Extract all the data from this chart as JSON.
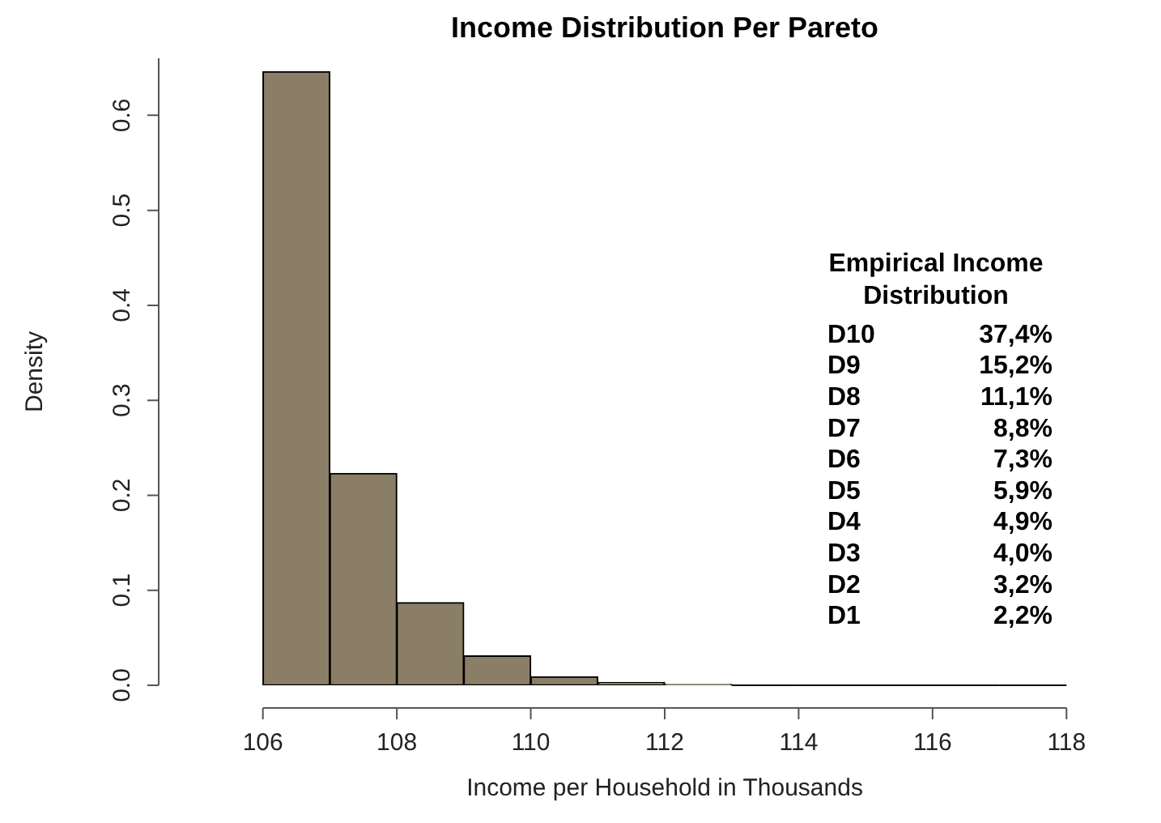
{
  "chart_data": {
    "type": "histogram",
    "title": "Income Distribution Per Pareto",
    "xlabel": "Income per Household in Thousands",
    "ylabel": "Density",
    "bins": [
      106,
      107,
      108,
      109,
      110,
      111,
      112,
      113,
      114,
      115,
      116,
      117,
      118
    ],
    "values": [
      0.646,
      0.223,
      0.087,
      0.031,
      0.009,
      0.003,
      0.001,
      0,
      0,
      0,
      0,
      0
    ],
    "color": "#8b7e66",
    "xlim": [
      106,
      118
    ],
    "xticks": [
      106,
      108,
      110,
      112,
      114,
      116,
      118
    ],
    "ylim": [
      0,
      0.66
    ],
    "yticks": [
      {
        "value": 0,
        "label": "0.0"
      },
      0.1,
      0.2,
      0.3,
      0.4,
      0.5,
      0.6
    ],
    "grid": false,
    "legend": false,
    "annotations": [
      "Empirical Income",
      "Distribution",
      "D10 37,4%",
      "D9 15,2%",
      "D8 11,1%",
      "D7 8,8%",
      "D6 7,3%",
      "D5 5,9%",
      "D4 4,9%",
      "D3 4,0%",
      "D2 3,2%",
      "D1 2,2%"
    ]
  }
}
